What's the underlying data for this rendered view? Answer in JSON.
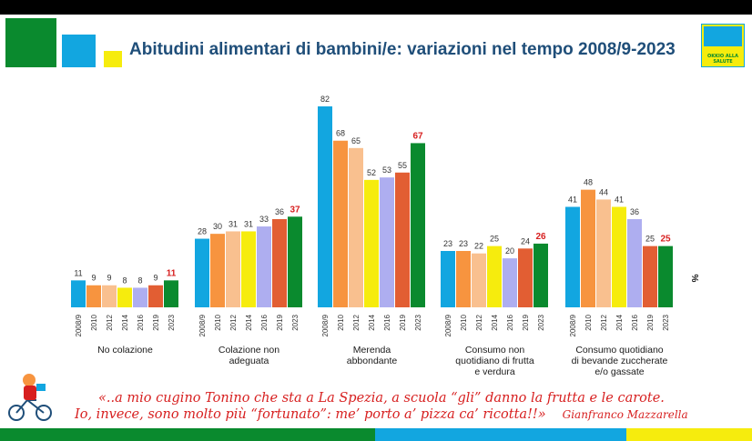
{
  "header": {
    "title": "Abitudini alimentari di bambini/e: variazioni nel tempo 2008/9-2023",
    "logo_text": "OKKIO ALLA SALUTE"
  },
  "colors": {
    "years": [
      "#12a6e0",
      "#f7943f",
      "#f9c08f",
      "#f6ec0d",
      "#aeaef0",
      "#e25e33",
      "#0a8a2e"
    ],
    "highlight": "#d71f1f",
    "axis_label": "#1f4e79"
  },
  "chart_data": {
    "type": "bar",
    "unit_label": "%",
    "years": [
      "2008/9",
      "2010",
      "2012",
      "2014",
      "2016",
      "2019",
      "2023"
    ],
    "groups": [
      {
        "label": [
          "No colazione"
        ],
        "values": [
          11,
          9,
          9,
          8,
          8,
          9,
          11
        ]
      },
      {
        "label": [
          "Colazione non",
          "adeguata"
        ],
        "values": [
          28,
          30,
          31,
          31,
          33,
          36,
          37
        ]
      },
      {
        "label": [
          "Merenda",
          "abbondante"
        ],
        "values": [
          82,
          68,
          65,
          52,
          53,
          55,
          67
        ]
      },
      {
        "label": [
          "Consumo non",
          "quotidiano di frutta",
          "e verdura"
        ],
        "values": [
          23,
          23,
          22,
          25,
          20,
          24,
          26
        ]
      },
      {
        "label": [
          "Consumo quotidiano",
          "di bevande zuccherate",
          "e/o gassate"
        ],
        "values": [
          41,
          48,
          44,
          41,
          36,
          25,
          25
        ]
      }
    ],
    "ylim": [
      0,
      82
    ]
  },
  "quote": {
    "line1": "«..a mio cugino Tonino che sta a La Spezia, a scuola “gli” danno la frutta e le carote.",
    "line2": "Io, invece, sono molto più “fortunato”: me’ porto a’ pizza ca’ ricotta!!»",
    "author": "Gianfranco Mazzarella"
  }
}
